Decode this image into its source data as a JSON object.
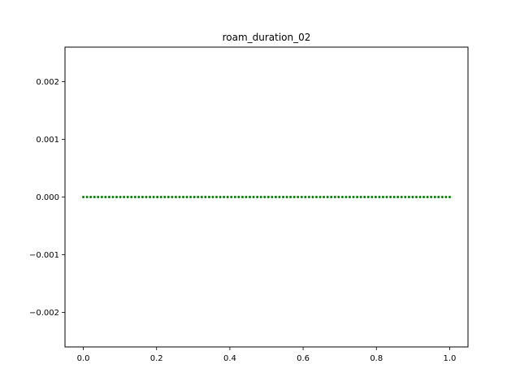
{
  "chart_data": {
    "type": "scatter",
    "title": "roam_duration_02",
    "xlabel": "",
    "ylabel": "",
    "xlim": [
      -0.05,
      1.05
    ],
    "ylim": [
      -0.0026,
      0.0026
    ],
    "grid": false,
    "marker_color": "#008000",
    "x_ticks": [
      0.0,
      0.2,
      0.4,
      0.6,
      0.8,
      1.0
    ],
    "x_tick_labels": [
      "0.0",
      "0.2",
      "0.4",
      "0.6",
      "0.8",
      "1.0"
    ],
    "y_ticks": [
      -0.002,
      -0.001,
      0.0,
      0.001,
      0.002
    ],
    "y_tick_labels": [
      "−0.002",
      "−0.001",
      "0.000",
      "0.001",
      "0.002"
    ],
    "series": [
      {
        "x_start": 0.0,
        "x_end": 1.0,
        "num_points": 100,
        "y_constant": 0.0
      }
    ]
  }
}
